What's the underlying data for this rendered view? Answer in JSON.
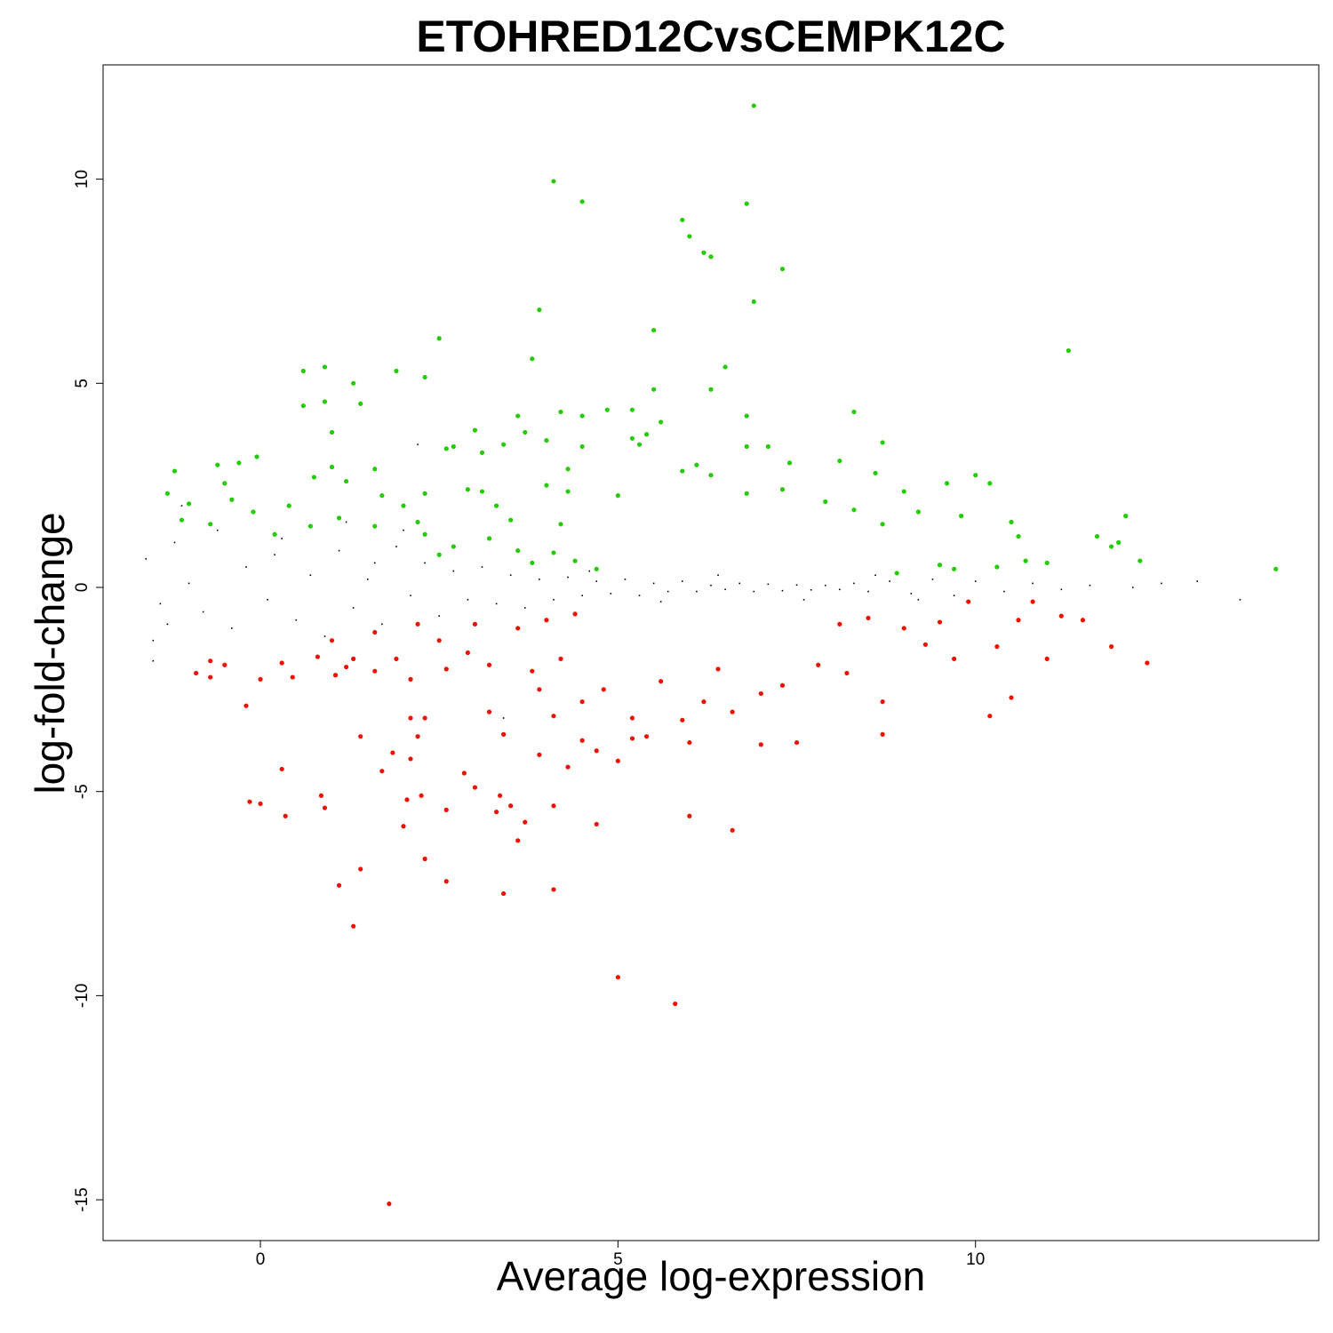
{
  "chart_data": {
    "type": "scatter",
    "title": "ETOHRED12CvsCEMPK12C",
    "xlabel": "Average log-expression",
    "ylabel": "log-fold-change",
    "xlim": [
      -2.2,
      14.8
    ],
    "ylim": [
      -16.0,
      12.8
    ],
    "x_ticks": [
      0,
      5,
      10
    ],
    "y_ticks": [
      -15,
      -10,
      -5,
      0,
      5,
      10
    ],
    "x_tick_labels": [
      "0",
      "5",
      "10"
    ],
    "y_tick_labels": [
      "-15",
      "-10",
      "-5",
      "0",
      "5",
      "10"
    ],
    "grid": false,
    "legend": "none",
    "colors": {
      "up": "#22cc00",
      "down": "#ee1100",
      "not_significant": "#000000",
      "frame": "#000000"
    },
    "series": [
      {
        "color": "#22cc00",
        "points": [
          [
            6.9,
            11.8
          ],
          [
            4.1,
            9.95
          ],
          [
            4.5,
            9.45
          ],
          [
            6.8,
            9.4
          ],
          [
            5.9,
            9.0
          ],
          [
            6.0,
            8.6
          ],
          [
            6.2,
            8.2
          ],
          [
            6.3,
            8.1
          ],
          [
            7.3,
            7.8
          ],
          [
            6.9,
            7.0
          ],
          [
            3.9,
            6.8
          ],
          [
            5.5,
            6.3
          ],
          [
            2.5,
            6.1
          ],
          [
            11.3,
            5.8
          ],
          [
            3.8,
            5.6
          ],
          [
            1.9,
            5.3
          ],
          [
            0.6,
            5.3
          ],
          [
            0.9,
            5.4
          ],
          [
            6.5,
            5.4
          ],
          [
            2.3,
            5.15
          ],
          [
            1.3,
            5.0
          ],
          [
            5.5,
            4.85
          ],
          [
            6.3,
            4.85
          ],
          [
            0.9,
            4.55
          ],
          [
            1.4,
            4.5
          ],
          [
            0.6,
            4.45
          ],
          [
            4.2,
            4.3
          ],
          [
            4.5,
            4.2
          ],
          [
            8.3,
            4.3
          ],
          [
            6.8,
            4.2
          ],
          [
            4.85,
            4.35
          ],
          [
            5.2,
            4.35
          ],
          [
            3.6,
            4.2
          ],
          [
            5.6,
            4.05
          ],
          [
            1.0,
            3.8
          ],
          [
            3.0,
            3.85
          ],
          [
            3.7,
            3.8
          ],
          [
            5.4,
            3.75
          ],
          [
            5.2,
            3.65
          ],
          [
            4.0,
            3.6
          ],
          [
            8.7,
            3.55
          ],
          [
            2.7,
            3.45
          ],
          [
            3.4,
            3.5
          ],
          [
            6.8,
            3.45
          ],
          [
            7.1,
            3.45
          ],
          [
            4.5,
            3.45
          ],
          [
            5.3,
            3.5
          ],
          [
            2.6,
            3.4
          ],
          [
            3.1,
            3.3
          ],
          [
            8.1,
            3.1
          ],
          [
            5.9,
            2.85
          ],
          [
            6.3,
            2.75
          ],
          [
            -0.05,
            3.2
          ],
          [
            -0.3,
            3.05
          ],
          [
            -1.2,
            2.85
          ],
          [
            -0.6,
            3.0
          ],
          [
            1.0,
            2.95
          ],
          [
            1.6,
            2.9
          ],
          [
            0.75,
            2.7
          ],
          [
            4.3,
            2.9
          ],
          [
            6.1,
            3.0
          ],
          [
            7.4,
            3.05
          ],
          [
            8.6,
            2.8
          ],
          [
            10.0,
            2.75
          ],
          [
            10.2,
            2.55
          ],
          [
            1.2,
            2.6
          ],
          [
            -0.5,
            2.55
          ],
          [
            -1.3,
            2.3
          ],
          [
            -1.0,
            2.05
          ],
          [
            -0.4,
            2.15
          ],
          [
            2.3,
            2.3
          ],
          [
            2.9,
            2.4
          ],
          [
            3.1,
            2.35
          ],
          [
            4.0,
            2.5
          ],
          [
            4.3,
            2.35
          ],
          [
            5.0,
            2.25
          ],
          [
            6.8,
            2.3
          ],
          [
            7.3,
            2.4
          ],
          [
            7.9,
            2.1
          ],
          [
            9.0,
            2.35
          ],
          [
            9.6,
            2.55
          ],
          [
            -0.1,
            1.85
          ],
          [
            0.4,
            2.0
          ],
          [
            1.7,
            2.25
          ],
          [
            2.0,
            2.0
          ],
          [
            3.3,
            2.0
          ],
          [
            8.3,
            1.9
          ],
          [
            9.2,
            1.85
          ],
          [
            9.8,
            1.75
          ],
          [
            0.7,
            1.5
          ],
          [
            1.1,
            1.7
          ],
          [
            2.2,
            1.6
          ],
          [
            3.5,
            1.65
          ],
          [
            4.2,
            1.55
          ],
          [
            8.7,
            1.55
          ],
          [
            10.5,
            1.6
          ],
          [
            11.7,
            1.25
          ],
          [
            12.0,
            1.1
          ],
          [
            12.1,
            1.75
          ],
          [
            12.3,
            0.65
          ],
          [
            14.2,
            0.45
          ],
          [
            11.0,
            0.6
          ],
          [
            10.3,
            0.5
          ],
          [
            10.7,
            0.65
          ],
          [
            9.7,
            0.45
          ],
          [
            9.5,
            0.55
          ],
          [
            8.9,
            0.35
          ],
          [
            3.2,
            1.2
          ],
          [
            3.6,
            0.9
          ],
          [
            4.1,
            0.85
          ],
          [
            4.4,
            0.65
          ],
          [
            4.7,
            0.45
          ],
          [
            2.3,
            1.3
          ],
          [
            2.7,
            1.0
          ],
          [
            1.6,
            1.5
          ],
          [
            0.2,
            1.3
          ],
          [
            10.6,
            1.25
          ],
          [
            11.9,
            1.0
          ],
          [
            2.5,
            0.8
          ],
          [
            3.8,
            0.6
          ],
          [
            -1.1,
            1.65
          ],
          [
            -0.7,
            1.55
          ]
        ]
      },
      {
        "color": "#ee1100",
        "points": [
          [
            1.8,
            -15.1
          ],
          [
            5.8,
            -10.2
          ],
          [
            5.0,
            -9.55
          ],
          [
            1.3,
            -8.3
          ],
          [
            3.4,
            -7.5
          ],
          [
            4.1,
            -7.4
          ],
          [
            1.1,
            -7.3
          ],
          [
            2.6,
            -7.2
          ],
          [
            1.4,
            -6.9
          ],
          [
            2.3,
            -6.65
          ],
          [
            3.6,
            -6.2
          ],
          [
            6.6,
            -5.95
          ],
          [
            2.0,
            -5.85
          ],
          [
            4.7,
            -5.8
          ],
          [
            6.0,
            -5.6
          ],
          [
            0.35,
            -5.6
          ],
          [
            3.3,
            -5.5
          ],
          [
            2.6,
            -5.45
          ],
          [
            3.7,
            -5.75
          ],
          [
            0.9,
            -5.4
          ],
          [
            3.5,
            -5.35
          ],
          [
            0.0,
            -5.3
          ],
          [
            -0.15,
            -5.25
          ],
          [
            4.1,
            -5.35
          ],
          [
            2.05,
            -5.2
          ],
          [
            2.25,
            -5.1
          ],
          [
            3.35,
            -5.1
          ],
          [
            0.85,
            -5.1
          ],
          [
            3.0,
            -4.9
          ],
          [
            2.85,
            -4.55
          ],
          [
            0.3,
            -4.45
          ],
          [
            1.7,
            -4.5
          ],
          [
            4.3,
            -4.4
          ],
          [
            5.0,
            -4.25
          ],
          [
            2.1,
            -4.2
          ],
          [
            3.9,
            -4.1
          ],
          [
            1.85,
            -4.05
          ],
          [
            4.7,
            -4.0
          ],
          [
            7.0,
            -3.85
          ],
          [
            7.5,
            -3.8
          ],
          [
            6.0,
            -3.8
          ],
          [
            4.5,
            -3.75
          ],
          [
            1.4,
            -3.65
          ],
          [
            5.2,
            -3.7
          ],
          [
            2.2,
            -3.65
          ],
          [
            3.4,
            -3.6
          ],
          [
            8.7,
            -3.6
          ],
          [
            5.4,
            -3.65
          ],
          [
            10.2,
            -3.15
          ],
          [
            10.5,
            -2.7
          ],
          [
            6.6,
            -3.05
          ],
          [
            2.3,
            -3.2
          ],
          [
            2.1,
            -3.2
          ],
          [
            4.1,
            -3.15
          ],
          [
            5.2,
            -3.2
          ],
          [
            5.9,
            -3.25
          ],
          [
            3.2,
            -3.05
          ],
          [
            4.5,
            -2.8
          ],
          [
            7.3,
            -2.4
          ],
          [
            8.7,
            -2.8
          ],
          [
            9.7,
            -1.75
          ],
          [
            11.0,
            -1.75
          ],
          [
            11.9,
            -1.45
          ],
          [
            12.4,
            -1.85
          ],
          [
            -0.2,
            -2.9
          ],
          [
            -0.9,
            -2.1
          ],
          [
            -0.7,
            -2.2
          ],
          [
            -0.5,
            -1.9
          ],
          [
            0.0,
            -2.25
          ],
          [
            0.3,
            -1.85
          ],
          [
            0.45,
            -2.2
          ],
          [
            0.8,
            -1.7
          ],
          [
            1.05,
            -2.15
          ],
          [
            1.2,
            -1.95
          ],
          [
            1.3,
            -1.75
          ],
          [
            1.6,
            -2.05
          ],
          [
            1.9,
            -1.75
          ],
          [
            2.1,
            -2.25
          ],
          [
            2.6,
            -2.0
          ],
          [
            2.9,
            -1.6
          ],
          [
            3.2,
            -1.9
          ],
          [
            3.8,
            -2.05
          ],
          [
            4.2,
            -1.75
          ],
          [
            5.6,
            -2.3
          ],
          [
            6.4,
            -2.0
          ],
          [
            7.8,
            -1.9
          ],
          [
            8.2,
            -2.1
          ],
          [
            9.3,
            -1.4
          ],
          [
            11.5,
            -0.8
          ],
          [
            11.2,
            -0.7
          ],
          [
            10.8,
            -0.35
          ],
          [
            9.9,
            -0.35
          ],
          [
            8.5,
            -0.75
          ],
          [
            8.1,
            -0.9
          ],
          [
            2.5,
            -1.3
          ],
          [
            3.0,
            -0.9
          ],
          [
            3.6,
            -1.0
          ],
          [
            4.0,
            -0.8
          ],
          [
            4.4,
            -0.65
          ],
          [
            2.2,
            -0.9
          ],
          [
            1.6,
            -1.1
          ],
          [
            9.0,
            -1.0
          ],
          [
            9.5,
            -0.85
          ],
          [
            10.3,
            -1.45
          ],
          [
            10.6,
            -0.8
          ],
          [
            6.2,
            -2.8
          ],
          [
            7.0,
            -2.6
          ],
          [
            4.8,
            -2.5
          ],
          [
            3.9,
            -2.5
          ],
          [
            1.0,
            -1.3
          ],
          [
            -0.7,
            -1.8
          ]
        ]
      },
      {
        "color": "#000000",
        "points": [
          [
            -1.6,
            0.7
          ],
          [
            -1.4,
            -0.4
          ],
          [
            -1.2,
            1.1
          ],
          [
            -1.5,
            -1.3
          ],
          [
            -1.0,
            0.1
          ],
          [
            -0.8,
            -0.6
          ],
          [
            -0.6,
            1.4
          ],
          [
            -0.4,
            -1.0
          ],
          [
            -0.2,
            0.5
          ],
          [
            0.1,
            -0.3
          ],
          [
            0.3,
            1.2
          ],
          [
            0.5,
            -0.8
          ],
          [
            0.7,
            0.3
          ],
          [
            0.9,
            -1.2
          ],
          [
            1.1,
            0.9
          ],
          [
            1.3,
            -0.5
          ],
          [
            1.5,
            0.2
          ],
          [
            1.7,
            -0.9
          ],
          [
            1.9,
            1.0
          ],
          [
            2.1,
            -0.2
          ],
          [
            2.3,
            0.6
          ],
          [
            2.5,
            -0.7
          ],
          [
            2.7,
            0.4
          ],
          [
            2.9,
            -0.3
          ],
          [
            3.1,
            0.5
          ],
          [
            3.3,
            -0.4
          ],
          [
            3.5,
            0.3
          ],
          [
            3.7,
            -0.5
          ],
          [
            3.9,
            0.2
          ],
          [
            4.1,
            -0.3
          ],
          [
            4.3,
            0.25
          ],
          [
            4.5,
            -0.2
          ],
          [
            4.7,
            0.15
          ],
          [
            4.9,
            -0.15
          ],
          [
            5.1,
            0.2
          ],
          [
            5.3,
            -0.2
          ],
          [
            5.5,
            0.1
          ],
          [
            5.7,
            -0.1
          ],
          [
            5.9,
            0.15
          ],
          [
            6.1,
            -0.1
          ],
          [
            6.3,
            0.05
          ],
          [
            6.5,
            -0.05
          ],
          [
            6.7,
            0.1
          ],
          [
            6.9,
            -0.1
          ],
          [
            7.1,
            0.08
          ],
          [
            7.3,
            -0.08
          ],
          [
            7.5,
            0.06
          ],
          [
            7.7,
            -0.06
          ],
          [
            7.9,
            0.05
          ],
          [
            8.1,
            -0.05
          ],
          [
            8.3,
            0.1
          ],
          [
            8.5,
            -0.1
          ],
          [
            8.8,
            0.15
          ],
          [
            9.1,
            -0.15
          ],
          [
            9.4,
            0.2
          ],
          [
            9.7,
            -0.2
          ],
          [
            10.0,
            0.15
          ],
          [
            10.4,
            -0.1
          ],
          [
            10.8,
            0.1
          ],
          [
            11.2,
            -0.05
          ],
          [
            11.6,
            0.05
          ],
          [
            12.2,
            0.0
          ],
          [
            12.6,
            0.1
          ],
          [
            13.1,
            0.15
          ],
          [
            13.7,
            -0.3
          ],
          [
            2.2,
            3.5
          ],
          [
            -1.5,
            -1.8
          ],
          [
            -1.1,
            2.0
          ],
          [
            1.2,
            1.6
          ],
          [
            3.4,
            -3.2
          ],
          [
            1.6,
            0.6
          ],
          [
            -1.3,
            -0.9
          ],
          [
            0.2,
            0.8
          ],
          [
            2.0,
            1.4
          ],
          [
            4.6,
            0.4
          ],
          [
            5.6,
            -0.35
          ],
          [
            6.4,
            0.3
          ],
          [
            7.6,
            -0.3
          ],
          [
            8.6,
            0.3
          ],
          [
            9.2,
            -0.3
          ]
        ]
      }
    ]
  }
}
